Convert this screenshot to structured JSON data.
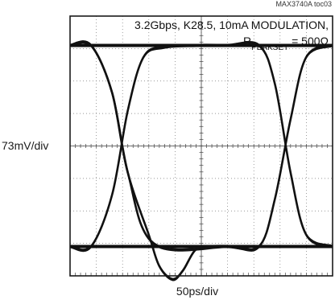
{
  "figure_id": "MAX3740A toc03",
  "chart_data": {
    "type": "line",
    "title": "",
    "xlabel": "50ps/div",
    "ylabel": "73mV/div",
    "annotation_line1": "3.2Gbps, K28.5, 10mA MODULATION,",
    "annotation_line2_prefix": "R",
    "annotation_line2_sub": "PEAKSET",
    "annotation_line2_suffix": " = 500Ω",
    "grid": true,
    "x_divisions": 10,
    "y_divisions": 8,
    "xlim": [
      0,
      500
    ],
    "ylim": [
      -292,
      292
    ],
    "series": [
      {
        "x": [
          0,
          500
        ],
        "y": [
          226,
          226
        ]
      },
      {
        "x": [
          0,
          500
        ],
        "y": [
          -226,
          -226
        ]
      },
      {
        "x": [
          0,
          40,
          80,
          110,
          160,
          300,
          360,
          390,
          420,
          450,
          500
        ],
        "y": [
          226,
          226,
          120,
          -60,
          -220,
          -226,
          -226,
          -120,
          60,
          200,
          226
        ]
      },
      {
        "x": [
          0,
          40,
          80,
          110,
          140,
          180,
          240,
          300,
          360,
          390,
          420,
          450,
          500
        ],
        "y": [
          -226,
          -226,
          -110,
          80,
          200,
          222,
          226,
          226,
          226,
          140,
          -60,
          -200,
          -226
        ]
      },
      {
        "x": [
          0,
          40,
          80,
          110,
          150,
          170,
          195,
          215,
          240,
          270,
          310,
          360,
          500
        ],
        "y": [
          226,
          226,
          120,
          -60,
          -200,
          -270,
          -300,
          -280,
          -232,
          -226,
          -226,
          -226,
          -226
        ]
      }
    ]
  }
}
